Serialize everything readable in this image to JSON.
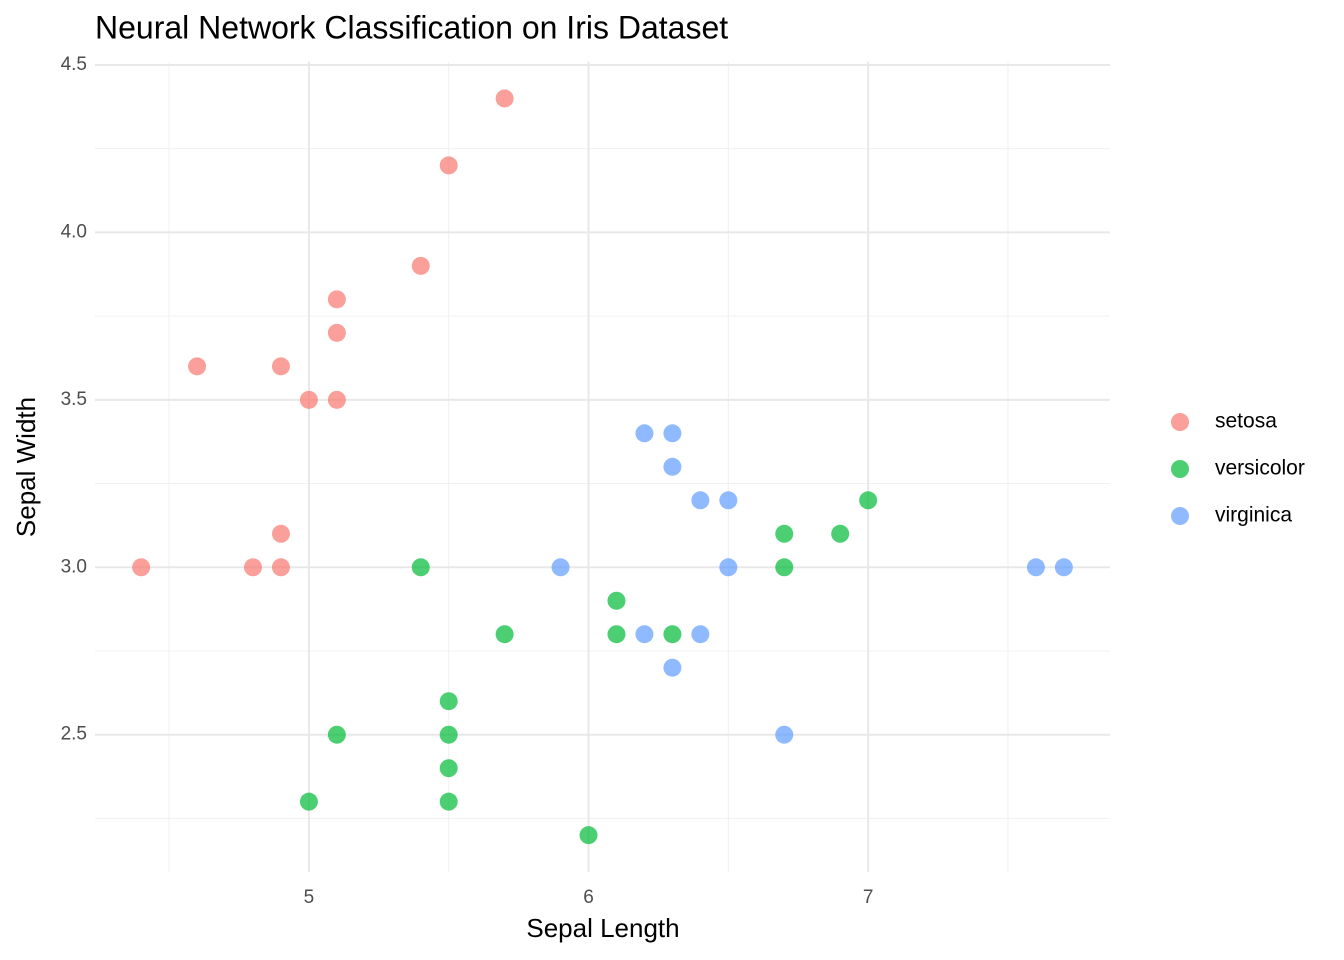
{
  "chart_data": {
    "type": "scatter",
    "title": "Neural Network Classification on Iris Dataset",
    "x_label": "Sepal Length",
    "y_label": "Sepal Width",
    "xlim": [
      4.235,
      7.865
    ],
    "ylim": [
      2.09,
      4.51
    ],
    "xticks": [
      5,
      6,
      7
    ],
    "yticks": [
      {
        "value": 2.5,
        "label": "2.5"
      },
      {
        "value": 3,
        "label": "3.0"
      },
      {
        "value": 3.5,
        "label": "3.5"
      },
      {
        "value": 4,
        "label": "4.0"
      },
      {
        "value": 4.5,
        "label": "4.5"
      }
    ],
    "x_minor_ticks": [
      4.5,
      5.5,
      6.5,
      7.5
    ],
    "y_minor_ticks": [
      2.25,
      2.75,
      3.25,
      3.75,
      4.25
    ],
    "grid": true,
    "legend": "right",
    "series": [
      {
        "name": "setosa",
        "color": "#F8766D",
        "x": [
          5.7,
          5.5,
          5.4,
          5.1,
          5.1,
          4.6,
          4.9,
          5.0,
          5.1,
          4.9,
          4.4,
          4.8,
          4.9
        ],
        "values": [
          4.4,
          4.2,
          3.9,
          3.8,
          3.7,
          3.6,
          3.6,
          3.5,
          3.5,
          3.1,
          3.0,
          3.0,
          3.0
        ]
      },
      {
        "name": "versicolor",
        "color": "#00BA38",
        "x": [
          5.4,
          5.7,
          6.1,
          6.1,
          6.3,
          5.5,
          5.1,
          5.5,
          5.5,
          5.0,
          5.5,
          6.0,
          6.7,
          6.7,
          6.9,
          7.0
        ],
        "values": [
          3.0,
          2.8,
          2.9,
          2.8,
          2.8,
          2.6,
          2.5,
          2.5,
          2.4,
          2.3,
          2.3,
          2.2,
          3.1,
          3.0,
          3.1,
          3.2
        ]
      },
      {
        "name": "virginica",
        "color": "#619CFF",
        "x": [
          6.2,
          6.3,
          6.3,
          6.4,
          6.5,
          5.9,
          6.5,
          6.2,
          6.4,
          6.3,
          6.7,
          7.6,
          7.7
        ],
        "values": [
          3.4,
          3.4,
          3.3,
          3.2,
          3.2,
          3.0,
          3.0,
          2.8,
          2.8,
          2.7,
          2.5,
          3.0,
          3.0
        ]
      }
    ]
  }
}
